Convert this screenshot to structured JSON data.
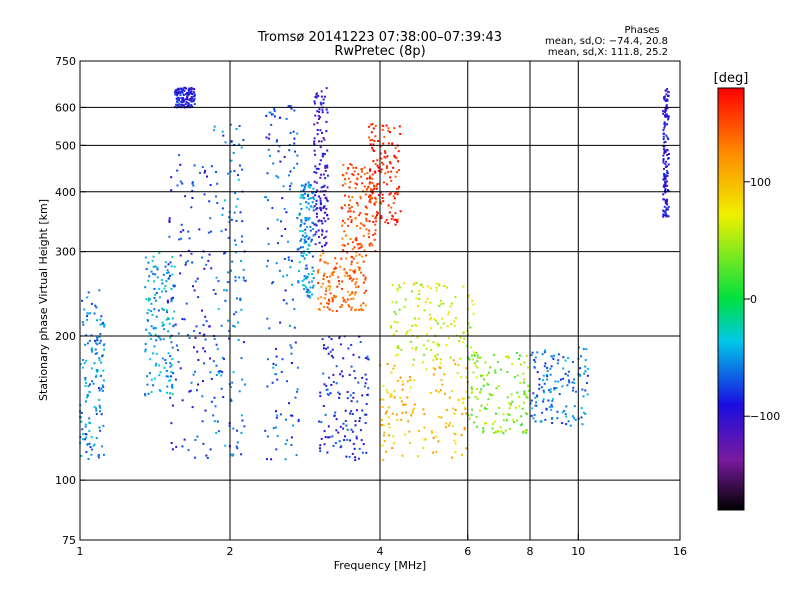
{
  "chart_data": {
    "type": "scatter",
    "title": "Tromsø 20141223 07:38:00–07:39:43",
    "subtitle": "RwPretec (8p)",
    "xlabel": "Frequency [MHz]",
    "ylabel": "Stationary phase Virtual Height [km]",
    "x_scale": "log",
    "y_scale": "log",
    "xlim": [
      1,
      16
    ],
    "ylim": [
      75,
      750
    ],
    "x_ticks": [
      "1",
      "2",
      "4",
      "6",
      "8",
      "10",
      "16"
    ],
    "y_ticks": [
      "75",
      "100",
      "200",
      "300",
      "400",
      "500",
      "600",
      "750"
    ],
    "x_grid": [
      2,
      4,
      6,
      8,
      10
    ],
    "y_grid": [
      100,
      200,
      300,
      400,
      500,
      600
    ],
    "stats": {
      "title": "Phases",
      "line1": "mean, sd,O: −74.4, 20.8",
      "line2": "mean, sd,X: 111.8, 25.2"
    },
    "colorbar": {
      "label": "[deg]",
      "range": [
        -180,
        180
      ],
      "ticks": [
        "100",
        "0",
        "−100"
      ],
      "tick_values": [
        100,
        0,
        -100
      ],
      "colormap": "rainbow (black-purple-blue-cyan-green-yellow-orange-red)"
    },
    "clusters": [
      {
        "x": [
          1.0,
          1.12
        ],
        "y": [
          110,
          250
        ],
        "phase": -55
      },
      {
        "x": [
          1.35,
          1.55
        ],
        "y": [
          150,
          300
        ],
        "phase": -45
      },
      {
        "x": [
          1.5,
          1.85
        ],
        "y": [
          110,
          480
        ],
        "phase": -80
      },
      {
        "x": [
          1.55,
          1.7
        ],
        "y": [
          600,
          660
        ],
        "phase": -90
      },
      {
        "x": [
          1.85,
          2.15
        ],
        "y": [
          110,
          560
        ],
        "phase": -60
      },
      {
        "x": [
          2.35,
          2.75
        ],
        "y": [
          110,
          620
        ],
        "phase": -70
      },
      {
        "x": [
          2.75,
          2.95
        ],
        "y": [
          240,
          420
        ],
        "phase": -50
      },
      {
        "x": [
          2.95,
          3.15
        ],
        "y": [
          300,
          660
        ],
        "phase": -105
      },
      {
        "x": [
          3.0,
          3.8
        ],
        "y": [
          110,
          200
        ],
        "phase": -85
      },
      {
        "x": [
          3.0,
          3.75
        ],
        "y": [
          225,
          300
        ],
        "phase": 140
      },
      {
        "x": [
          3.35,
          3.95
        ],
        "y": [
          300,
          460
        ],
        "phase": 150
      },
      {
        "x": [
          3.8,
          4.4
        ],
        "y": [
          340,
          560
        ],
        "phase": 165
      },
      {
        "x": [
          4.0,
          6.0
        ],
        "y": [
          110,
          180
        ],
        "phase": 100
      },
      {
        "x": [
          4.2,
          6.2
        ],
        "y": [
          175,
          260
        ],
        "phase": 60
      },
      {
        "x": [
          6.0,
          8.0
        ],
        "y": [
          125,
          185
        ],
        "phase": 40
      },
      {
        "x": [
          8.0,
          10.5
        ],
        "y": [
          130,
          190
        ],
        "phase": -60
      },
      {
        "x": [
          14.8,
          15.2
        ],
        "y": [
          350,
          660
        ],
        "phase": -95
      }
    ]
  }
}
